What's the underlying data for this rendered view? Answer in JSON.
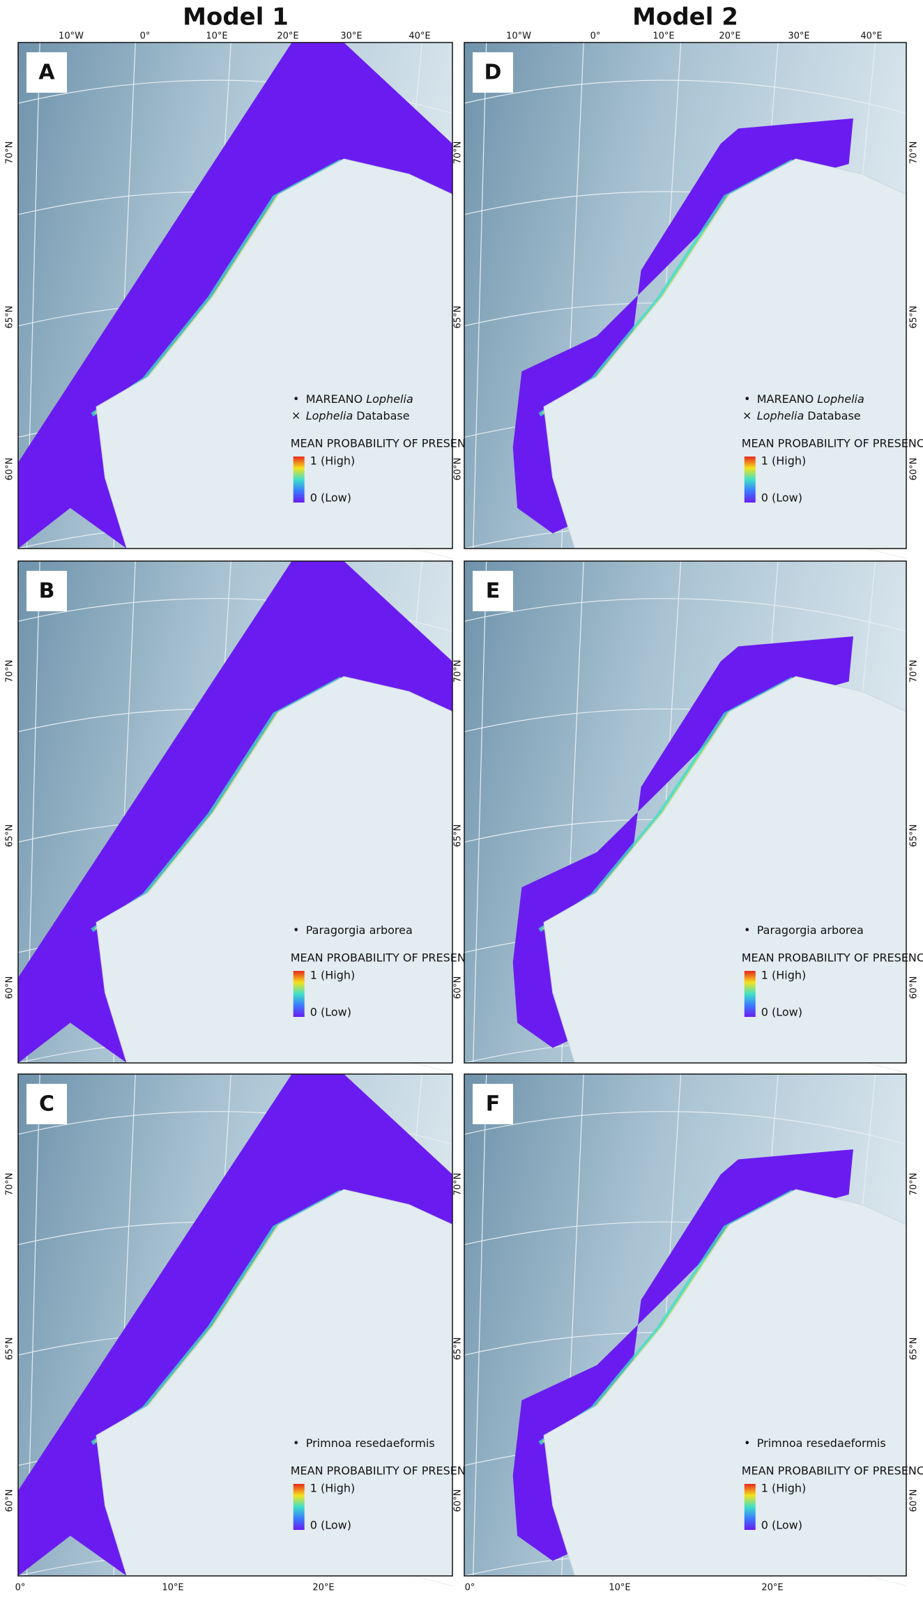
{
  "column_titles": [
    "Model 1",
    "Model 2"
  ],
  "longitudes": {
    "top_left": [
      "10°W",
      "0°",
      "10°E",
      "20°E",
      "30°E",
      "40°E"
    ],
    "top_right": [
      "10°W",
      "0°",
      "10°E",
      "20°E",
      "30°E",
      "40°E"
    ],
    "bottom_left": [
      "0°",
      "10°E",
      "20°E"
    ],
    "bottom_right": [
      "0°",
      "10°E",
      "20°E"
    ]
  },
  "latitudes": [
    "70°N",
    "65°N",
    "60°N"
  ],
  "panels": [
    {
      "letter": "A",
      "legend": {
        "points": [
          {
            "symbol": "•",
            "parts": [
              {
                "text": "MAREANO"
              },
              {
                "text": "Lophelia",
                "italic": true
              }
            ]
          },
          {
            "symbol": "×",
            "parts": [
              {
                "text": "Lophelia",
                "italic": true
              },
              {
                "text": "Database"
              }
            ]
          }
        ],
        "title": "MEAN PROBABILITY OF PRESENCE",
        "high": "1 (High)",
        "low": "0 (Low)"
      }
    },
    {
      "letter": "D",
      "legend": {
        "points": [
          {
            "symbol": "•",
            "parts": [
              {
                "text": "MAREANO"
              },
              {
                "text": "Lophelia",
                "italic": true
              }
            ]
          },
          {
            "symbol": "×",
            "parts": [
              {
                "text": "Lophelia",
                "italic": true
              },
              {
                "text": "Database"
              }
            ]
          }
        ],
        "title": "MEAN PROBABILITY OF PRESENCE",
        "high": "1 (High)",
        "low": "0 (Low)"
      }
    },
    {
      "letter": "B",
      "legend": {
        "points": [
          {
            "symbol": "•",
            "parts": [
              {
                "text": "Paragorgia arborea"
              }
            ]
          }
        ],
        "title": "MEAN PROBABILITY OF PRESENCE",
        "high": "1 (High)",
        "low": "0 (Low)"
      }
    },
    {
      "letter": "E",
      "legend": {
        "points": [
          {
            "symbol": "•",
            "parts": [
              {
                "text": "Paragorgia arborea"
              }
            ]
          }
        ],
        "title": "MEAN PROBABILITY OF PRESENCE",
        "high": "1 (High)",
        "low": "0 (Low)"
      }
    },
    {
      "letter": "C",
      "legend": {
        "points": [
          {
            "symbol": "•",
            "parts": [
              {
                "text": "Primnoa resedaeformis"
              }
            ]
          }
        ],
        "title": "MEAN PROBABILITY OF PRESENCE",
        "high": "1 (High)",
        "low": "0 (Low)"
      }
    },
    {
      "letter": "F",
      "legend": {
        "points": [
          {
            "symbol": "•",
            "parts": [
              {
                "text": "Primnoa resedaeformis"
              }
            ]
          }
        ],
        "title": "MEAN PROBABILITY OF PRESENCE",
        "high": "1 (High)",
        "low": "0 (Low)"
      }
    }
  ]
}
